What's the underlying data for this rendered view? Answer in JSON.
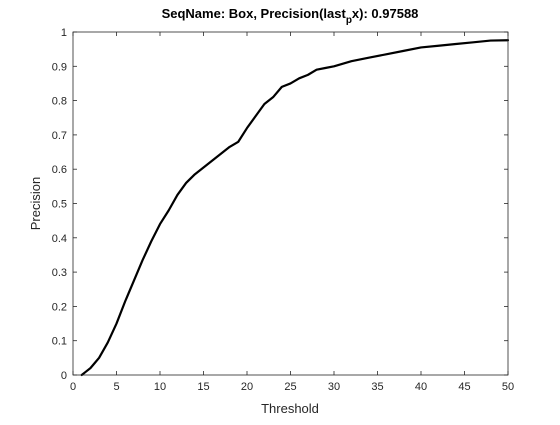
{
  "chart_data": {
    "type": "line",
    "title": "SeqName: Box, Precision(last",
    "title_subscript": "p",
    "title_suffix": "x): 0.97588",
    "xlabel": "Threshold",
    "ylabel": "Precision",
    "xlim": [
      0,
      50
    ],
    "ylim": [
      0,
      1
    ],
    "xticks": [
      "0",
      "5",
      "10",
      "15",
      "20",
      "25",
      "30",
      "35",
      "40",
      "45",
      "50"
    ],
    "yticks": [
      "0",
      "0.1",
      "0.2",
      "0.3",
      "0.4",
      "0.5",
      "0.6",
      "0.7",
      "0.8",
      "0.9",
      "1"
    ],
    "grid": false,
    "series": [
      {
        "color": "#000000",
        "x": [
          1,
          1.5,
          2,
          2.5,
          3,
          4,
          5,
          6,
          7,
          8,
          9,
          10,
          11,
          12,
          13,
          14,
          15,
          16,
          17,
          18,
          19,
          20,
          21,
          22,
          23,
          24,
          25,
          26,
          27,
          28,
          29,
          30,
          32,
          34,
          36,
          38,
          40,
          42,
          44,
          46,
          48,
          50
        ],
        "y": [
          0,
          0.01,
          0.02,
          0.035,
          0.05,
          0.095,
          0.15,
          0.215,
          0.275,
          0.335,
          0.39,
          0.44,
          0.48,
          0.525,
          0.56,
          0.585,
          0.605,
          0.625,
          0.645,
          0.665,
          0.68,
          0.72,
          0.755,
          0.79,
          0.81,
          0.84,
          0.85,
          0.865,
          0.875,
          0.89,
          0.895,
          0.9,
          0.915,
          0.925,
          0.935,
          0.945,
          0.955,
          0.96,
          0.965,
          0.97,
          0.975,
          0.97588
        ]
      }
    ]
  }
}
